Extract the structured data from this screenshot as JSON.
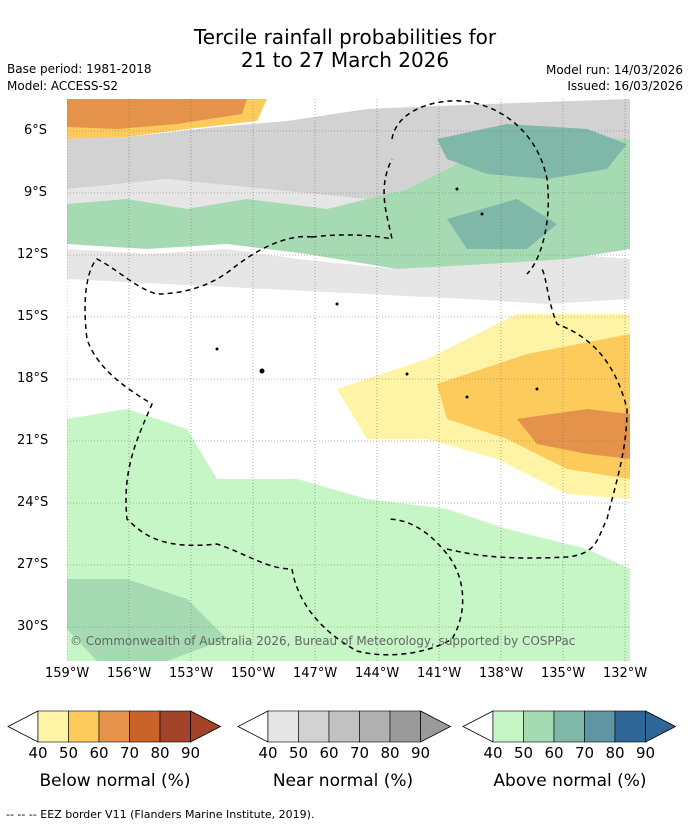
{
  "title": {
    "line1": "Tercile rainfall probabilities for",
    "line2": "21 to 27 March 2026"
  },
  "meta": {
    "base_period": "Base period: 1981-2018",
    "model": "Model: ACCESS-S2",
    "model_run": "Model run: 14/03/2026",
    "issued": "Issued: 16/03/2026"
  },
  "map": {
    "copyright": "© Commonwealth of Australia 2026, Bureau of Meteorology, supported by COSPPac",
    "lat_labels": [
      "6°S",
      "9°S",
      "12°S",
      "15°S",
      "18°S",
      "21°S",
      "24°S",
      "27°S",
      "30°S"
    ],
    "lon_labels": [
      "159°W",
      "156°W",
      "153°W",
      "150°W",
      "147°W",
      "144°W",
      "141°W",
      "138°W",
      "135°W",
      "132°W"
    ]
  },
  "legends": [
    {
      "name": "below",
      "label": "Below normal (%)",
      "ticks": [
        "40",
        "50",
        "60",
        "70",
        "80",
        "90"
      ],
      "colors": [
        "#fff3a6",
        "#fdca5c",
        "#e5934a",
        "#c9622b",
        "#a3432a"
      ]
    },
    {
      "name": "near",
      "label": "Near normal (%)",
      "ticks": [
        "40",
        "50",
        "60",
        "70",
        "80",
        "90"
      ],
      "colors": [
        "#e6e6e6",
        "#d2d2d2",
        "#c1c1c1",
        "#b0b0b0",
        "#9a9a9a"
      ]
    },
    {
      "name": "above",
      "label": "Above normal (%)",
      "ticks": [
        "40",
        "50",
        "60",
        "70",
        "80",
        "90"
      ],
      "colors": [
        "#c6f5c6",
        "#a6dab2",
        "#7fb7a8",
        "#5e96a3",
        "#2f6697"
      ]
    }
  ],
  "footer": "--  --  -- EEZ border V11 (Flanders Marine Institute, 2019)."
}
